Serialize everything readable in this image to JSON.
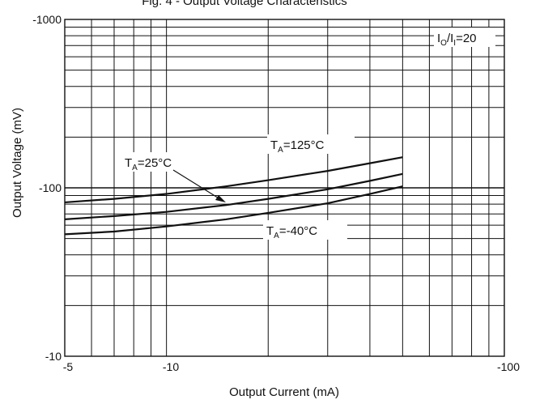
{
  "chart_data": {
    "type": "line",
    "title": "Fig. 4 - Output Voltage Characteristics",
    "xlabel": "Output Current (mA)",
    "ylabel": "Output Voltage (mV)",
    "x_scale": "log",
    "y_scale": "log",
    "xlim": [
      -5,
      -100
    ],
    "ylim": [
      -10,
      -1000
    ],
    "x_ticks": [
      "-5",
      "-10",
      "-100"
    ],
    "y_ticks": [
      "-10",
      "-100",
      "-1000"
    ],
    "grid": true,
    "series": [
      {
        "name": "TA=125°C",
        "x": [
          -5,
          -7,
          -10,
          -15,
          -20,
          -30,
          -40,
          -50
        ],
        "y": [
          -82,
          -86,
          -92,
          -102,
          -111,
          -126,
          -140,
          -152
        ]
      },
      {
        "name": "TA=25°C",
        "x": [
          -5,
          -7,
          -10,
          -15,
          -20,
          -30,
          -40,
          -50
        ],
        "y": [
          -65,
          -68,
          -72,
          -79,
          -86,
          -98,
          -110,
          -121
        ]
      },
      {
        "name": "TA=-40°C",
        "x": [
          -5,
          -7,
          -10,
          -15,
          -20,
          -30,
          -40,
          -50
        ],
        "y": [
          -53,
          -55,
          -59,
          -65,
          -71,
          -81,
          -92,
          -102
        ]
      }
    ],
    "annotations": {
      "ratio": {
        "main": "I",
        "sub1": "O",
        "mid": "/I",
        "sub2": "I",
        "tail": "=20"
      },
      "t125": {
        "main": "T",
        "sub": "A",
        "tail": "=125°C"
      },
      "t25": {
        "main": "T",
        "sub": "A",
        "tail": "=25°C"
      },
      "tm40": {
        "main": "T",
        "sub": "A",
        "tail": "=-40°C"
      }
    }
  }
}
